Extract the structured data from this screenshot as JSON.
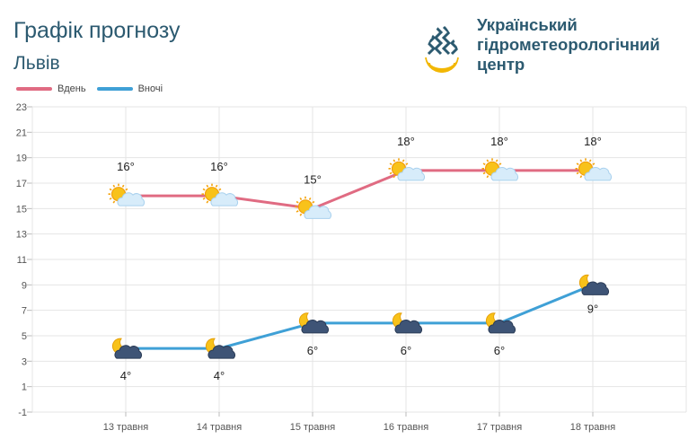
{
  "header": {
    "title": "Графік прогнозу",
    "city": "Львів",
    "org_lines": [
      "Український",
      "гідрометеорологічний",
      "центр"
    ]
  },
  "colors": {
    "day": "#e06b82",
    "night": "#3fa0d6",
    "text": "#2c5a70",
    "grid": "#e4e4e4"
  },
  "chart_data": {
    "type": "line",
    "categories": [
      "13 травня",
      "14 травня",
      "15 травня",
      "16 травня",
      "17 травня",
      "18 травня"
    ],
    "series": [
      {
        "name": "Вдень",
        "values": [
          16,
          16,
          15,
          18,
          18,
          18
        ],
        "labels": [
          "16°",
          "16°",
          "15°",
          "18°",
          "18°",
          "18°"
        ],
        "icons": [
          "sun-cloud-icon",
          "sun-cloud-icon",
          "sun-cloud-icon",
          "sun-cloud-icon",
          "sun-cloud-icon",
          "sun-cloud-icon"
        ]
      },
      {
        "name": "Вночі",
        "values": [
          4,
          4,
          6,
          6,
          6,
          9
        ],
        "labels": [
          "4°",
          "4°",
          "6°",
          "6°",
          "6°",
          "9°"
        ],
        "icons": [
          "moon-dark-cloud-icon",
          "moon-dark-cloud-icon",
          "moon-dark-cloud-icon",
          "moon-dark-cloud-icon",
          "moon-dark-cloud-icon",
          "moon-dark-cloud-icon"
        ]
      }
    ],
    "ylim": [
      -1,
      23
    ],
    "yticks": [
      "23",
      "21",
      "19",
      "17",
      "15",
      "13",
      "11",
      "9",
      "7",
      "5",
      "3",
      "1",
      "-1"
    ],
    "grid": true,
    "legend_position": "top-left"
  }
}
